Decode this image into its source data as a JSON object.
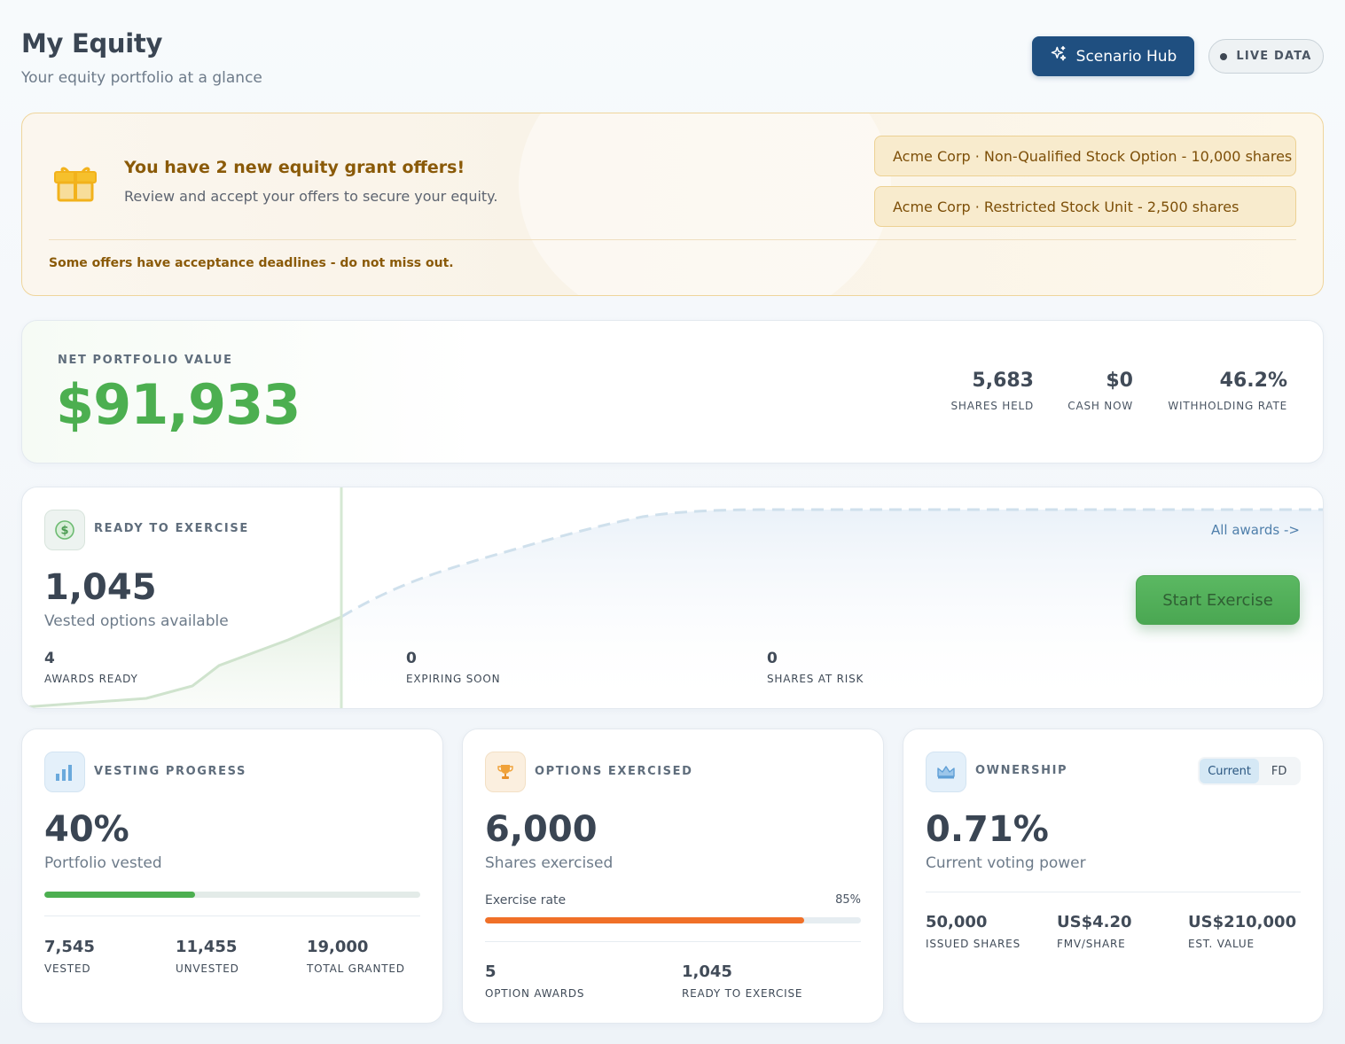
{
  "header": {
    "title": "My Equity",
    "subtitle": "Your equity portfolio at a glance",
    "scenario_button": "Scenario Hub",
    "live_badge": "LIVE DATA"
  },
  "offers": {
    "title": "You have 2 new equity grant offers!",
    "text": "Review and accept your offers to secure your equity.",
    "items": [
      "Acme Corp · Non-Qualified Stock Option - 10,000 shares",
      "Acme Corp · Restricted Stock Unit - 2,500 shares"
    ],
    "note": "Some offers have acceptance deadlines - do not miss out."
  },
  "portfolio": {
    "label": "NET PORTFOLIO VALUE",
    "value": "$91,933",
    "stats": [
      {
        "value": "5,683",
        "label": "SHARES HELD"
      },
      {
        "value": "$0",
        "label": "CASH NOW"
      },
      {
        "value": "46.2%",
        "label": "WITHHOLDING RATE"
      }
    ]
  },
  "ready": {
    "label": "READY TO EXERCISE",
    "value": "1,045",
    "sub": "Vested options available",
    "stats": [
      {
        "value": "4",
        "label": "AWARDS READY"
      },
      {
        "value": "0",
        "label": "EXPIRING SOON"
      },
      {
        "value": "0",
        "label": "SHARES AT RISK"
      }
    ],
    "all_awards_link": "All awards ->",
    "exercise_button": "Start Exercise"
  },
  "vesting": {
    "label": "VESTING PROGRESS",
    "value": "40%",
    "sub": "Portfolio vested",
    "progress": 0.4,
    "stats": [
      {
        "value": "7,545",
        "label": "VESTED"
      },
      {
        "value": "11,455",
        "label": "UNVESTED"
      },
      {
        "value": "19,000",
        "label": "TOTAL GRANTED"
      }
    ]
  },
  "exercised": {
    "label": "OPTIONS EXERCISED",
    "value": "6,000",
    "sub": "Shares exercised",
    "rate_label": "Exercise rate",
    "rate_value": "85%",
    "rate": 0.85,
    "stats": [
      {
        "value": "5",
        "label": "OPTION AWARDS"
      },
      {
        "value": "1,045",
        "label": "READY TO EXERCISE"
      }
    ]
  },
  "ownership": {
    "label": "OWNERSHIP",
    "value": "0.71%",
    "sub": "Current voting power",
    "toggle": {
      "options": [
        "Current",
        "FD"
      ],
      "selected": "Current"
    },
    "stats": [
      {
        "value": "50,000",
        "label": "ISSUED SHARES"
      },
      {
        "value": "US$4.20",
        "label": "FMV/SHARE"
      },
      {
        "value": "US$210,000",
        "label": "EST. VALUE"
      }
    ]
  },
  "colors": {
    "primary": "#1f4f80",
    "positive": "#4caf50",
    "warning": "#8a5a08",
    "exercise_bar": "#f07028",
    "vesting_bar": "#4caf50"
  },
  "icons": {
    "scenario": "sparkles-icon",
    "offers": "gift-icon",
    "ready": "dollar-coin-icon",
    "vesting": "bar-chart-icon",
    "exercised": "trophy-icon",
    "ownership": "crown-icon"
  }
}
